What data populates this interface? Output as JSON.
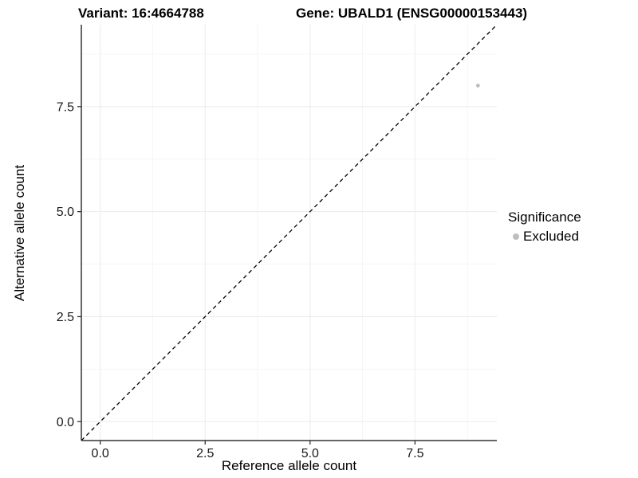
{
  "header": {
    "variant_title": "Variant: 16:4664788",
    "gene_title": "Gene: UBALD1 (ENSG00000153443)"
  },
  "chart_data": {
    "type": "scatter",
    "xlabel": "Reference allele count",
    "ylabel": "Alternative allele count",
    "xlim": [
      -0.45,
      9.45
    ],
    "ylim": [
      -0.45,
      9.45
    ],
    "x_ticks": [
      0,
      2.5,
      5,
      7.5
    ],
    "x_tick_labels": [
      "0.0",
      "2.5",
      "5.0",
      "7.5"
    ],
    "y_ticks": [
      0,
      2.5,
      5,
      7.5
    ],
    "y_tick_labels": [
      "0.0",
      "2.5",
      "5.0",
      "7.5"
    ],
    "x_minor_ticks": [
      1.25,
      3.75,
      6.25,
      8.75
    ],
    "y_minor_ticks": [
      1.25,
      3.75,
      6.25,
      8.75
    ],
    "grid": "major+minor",
    "legend_position": "right",
    "identity_line": {
      "style": "dashed",
      "slope": 1,
      "intercept": 0,
      "color": "#000000"
    },
    "series": [
      {
        "name": "Excluded",
        "color": "#bebebe",
        "points": [
          {
            "x": 9,
            "y": 8
          }
        ]
      }
    ]
  },
  "legend": {
    "title": "Significance",
    "items": [
      {
        "label": "Excluded",
        "color": "#bebebe"
      }
    ]
  },
  "colors": {
    "background": "#ffffff",
    "grid_major": "#ebebeb",
    "grid_minor": "#f5f5f5",
    "axis_line": "#333333",
    "tick_text": "#1a1a1a"
  }
}
